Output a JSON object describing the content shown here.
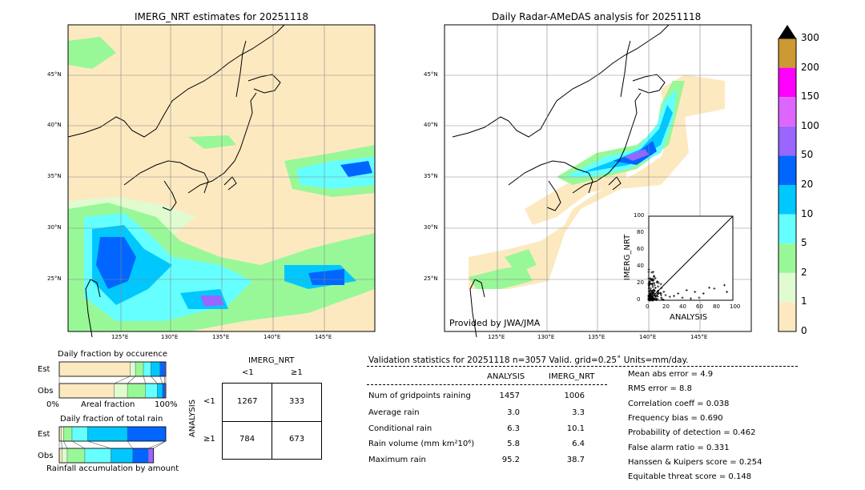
{
  "colors": {
    "c0": "#fde9c0",
    "c1": "#e0fbd0",
    "c2": "#98f898",
    "c3": "#66ffff",
    "c4": "#00c8ff",
    "c5": "#0066ff",
    "c6": "#9966ff",
    "c7": "#dd66ff",
    "c8": "#ff00ff",
    "c9": "#cc9933"
  },
  "chart_data": [
    {
      "type": "heatmap",
      "title": "IMERG_NRT estimates for 20251118",
      "lat_ticks": [
        "45°N",
        "40°N",
        "35°N",
        "30°N",
        "25°N"
      ],
      "lon_ticks": [
        "125°E",
        "130°E",
        "135°E",
        "140°E",
        "145°E"
      ]
    },
    {
      "type": "heatmap",
      "title": "Daily Radar-AMeDAS analysis for 20251118",
      "lat_ticks": [
        "45°N",
        "40°N",
        "35°N",
        "30°N",
        "25°N"
      ],
      "lon_ticks": [
        "125°E",
        "130°E",
        "135°E",
        "140°E",
        "145°E"
      ],
      "credit": "Provided by JWA/JMA"
    },
    {
      "type": "colorbar",
      "ticks": [
        "0",
        "1",
        "2",
        "5",
        "10",
        "20",
        "50",
        "100",
        "150",
        "200",
        "300"
      ]
    },
    {
      "type": "scatter",
      "xlabel": "ANALYSIS",
      "ylabel": "IMERG_NRT",
      "xlim": [
        0,
        100
      ],
      "ylim": [
        0,
        100
      ],
      "ticks": [
        "0",
        "20",
        "40",
        "60",
        "80",
        "100"
      ],
      "points": [
        [
          45,
          12
        ],
        [
          55,
          10
        ],
        [
          65,
          8
        ],
        [
          72,
          15
        ],
        [
          78,
          14
        ],
        [
          90,
          18
        ],
        [
          93,
          10
        ],
        [
          30,
          5
        ],
        [
          35,
          8
        ],
        [
          25,
          4
        ],
        [
          20,
          6
        ],
        [
          15,
          3
        ],
        [
          12,
          8
        ],
        [
          18,
          10
        ],
        [
          40,
          3
        ],
        [
          50,
          2
        ],
        [
          60,
          3
        ]
      ]
    },
    {
      "type": "bar",
      "title": "Daily fraction by occurence",
      "xlabel": "Areal fraction",
      "left_label": "0%",
      "right_label": "100%",
      "rows": [
        "Est",
        "Obs"
      ],
      "series": {
        "Est": [
          66.5,
          5,
          7.5,
          7,
          8.5,
          4.5,
          1
        ],
        "Obs": [
          51.5,
          12.5,
          17,
          11,
          5,
          2,
          1
        ]
      }
    },
    {
      "type": "bar",
      "title": "Daily fraction of total rain",
      "xlabel": "Rainfall accumulation by amount",
      "rows": [
        "Est",
        "Obs"
      ],
      "series": {
        "Est": [
          2,
          2,
          8,
          14.5,
          37.5,
          36,
          0
        ],
        "Obs": [
          2.5,
          5,
          16.5,
          24.5,
          20.5,
          14.5,
          5
        ]
      }
    },
    {
      "type": "table",
      "title": "IMERG_NRT",
      "col_labels": [
        "<1",
        "≥1"
      ],
      "row_title": "ANALYSIS",
      "row_labels": [
        "<1",
        "≥1"
      ],
      "cells": [
        [
          "1267",
          "333"
        ],
        [
          "784",
          "673"
        ]
      ]
    }
  ],
  "stats": {
    "header": "Validation statistics for 20251118  n=3057 Valid. grid=0.25˚ Units=mm/day.",
    "col1": "ANALYSIS",
    "col2": "IMERG_NRT",
    "rows": [
      {
        "label": "Num of gridpoints raining",
        "a": "1457",
        "b": "1006"
      },
      {
        "label": "Average rain",
        "a": "3.0",
        "b": "3.3"
      },
      {
        "label": "Conditional rain",
        "a": "6.3",
        "b": "10.1"
      },
      {
        "label": "Rain volume (mm km²10⁶)",
        "a": "5.8",
        "b": "6.4"
      },
      {
        "label": "Maximum rain",
        "a": "95.2",
        "b": "38.7"
      }
    ],
    "scores": [
      "Mean abs error =    4.9",
      "RMS error =    8.8",
      "Correlation coeff =  0.038",
      "Frequency bias =  0.690",
      "Probability of detection =  0.462",
      "False alarm ratio =  0.331",
      "Hanssen & Kuipers score =  0.254",
      "Equitable threat score =  0.148"
    ]
  }
}
